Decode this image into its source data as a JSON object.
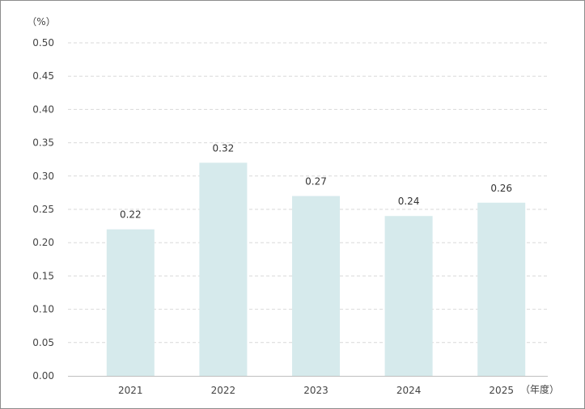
{
  "chart_data": {
    "type": "bar",
    "title": "",
    "xlabel": "（年度）",
    "ylabel": "（%）",
    "categories": [
      "2021",
      "2022",
      "2023",
      "2024",
      "2025"
    ],
    "values": [
      0.22,
      0.32,
      0.27,
      0.24,
      0.26
    ],
    "value_labels": [
      "0.22",
      "0.32",
      "0.27",
      "0.24",
      "0.26"
    ],
    "ylim": [
      0,
      0.5
    ],
    "yticks": [
      0.0,
      0.05,
      0.1,
      0.15,
      0.2,
      0.25,
      0.3,
      0.35,
      0.4,
      0.45,
      0.5
    ],
    "ytick_labels": [
      "0.00",
      "0.05",
      "0.10",
      "0.15",
      "0.20",
      "0.25",
      "0.30",
      "0.35",
      "0.40",
      "0.45",
      "0.50"
    ],
    "grid": true,
    "grid_style": "dashed",
    "legend": "none",
    "bar_color": "#d6eaec",
    "grid_color": "#d9d9d9",
    "axis_color": "#bfbfbf"
  }
}
